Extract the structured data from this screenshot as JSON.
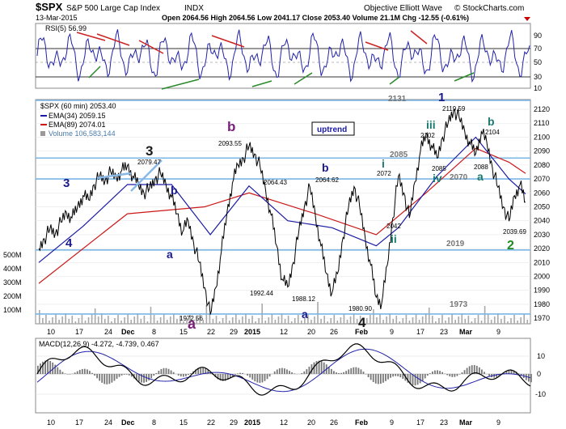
{
  "header": {
    "symbol": "$SPX",
    "name": "S&P 500 Large Cap Index",
    "exchange": "INDX",
    "date": "13-Mar-2015",
    "quote": "Open 2064.56  High 2064.56  Low 2041.17  Close 2053.40  Volume 21.1M  Chg -12.55 (-0.61%)",
    "source": "Objective Elliott Wave",
    "watermark": "© StockCharts.com"
  },
  "rsi": {
    "label": "RSI(5) 56.99",
    "ticks": [
      "90",
      "70",
      "50",
      "30",
      "10"
    ]
  },
  "price_legend": {
    "title": "$SPX (60 min) 2053.40",
    "ema34": "EMA(34) 2059.15",
    "ema89": "EMA(89) 2074.01",
    "volume": "Volume 106,583,144"
  },
  "macd": {
    "label": "MACD(12,26,9) -4.272, -4.739, 0.467",
    "ticks": [
      "10",
      "0",
      "-10"
    ]
  },
  "volume_axis": [
    "500M",
    "400M",
    "300M",
    "200M",
    "100M"
  ],
  "annotations": {
    "uptrend": "uptrend",
    "waves": [
      {
        "t": "3",
        "c": "#1a1a1a"
      },
      {
        "t": "b",
        "c": "#7a1f7a"
      },
      {
        "t": "1",
        "c": "#1a1a8c"
      },
      {
        "t": "3",
        "c": "#1a1a8c"
      },
      {
        "t": "4",
        "c": "#1a1a8c"
      },
      {
        "t": "b",
        "c": "#1a1a8c"
      },
      {
        "t": "a",
        "c": "#1a1a8c"
      },
      {
        "t": "a",
        "c": "#7a1f7a"
      },
      {
        "t": "b",
        "c": "#1a1a8c"
      },
      {
        "t": "a",
        "c": "#1a1a8c"
      },
      {
        "t": "4",
        "c": "#1a1a1a"
      },
      {
        "t": "i",
        "c": "#1b7a6e"
      },
      {
        "t": "ii",
        "c": "#1b7a6e"
      },
      {
        "t": "iii",
        "c": "#1b7a6e"
      },
      {
        "t": "iv",
        "c": "#1b7a6e"
      },
      {
        "t": "b",
        "c": "#1b7a6e"
      },
      {
        "t": "a",
        "c": "#1b7a6e"
      },
      {
        "t": "2",
        "c": "#1f8a1f"
      }
    ],
    "levels": [
      "2131",
      "2085",
      "2070",
      "2019",
      "1973"
    ],
    "price_labels": [
      "2079.47",
      "2093.55",
      "2064.43",
      "2064.62",
      "1992.44",
      "1988.12",
      "1972.56",
      "1980.90",
      "2072",
      "2042",
      "2102",
      "2085",
      "2119.59",
      "2088",
      "2104",
      "2039.69"
    ]
  },
  "chart_data": {
    "type": "line",
    "title": "$SPX S&P 500 Large Cap Index INDX (60 min)",
    "x_ticks": [
      "10",
      "17",
      "24",
      "Dec",
      "8",
      "15",
      "22",
      "29",
      "2015",
      "12",
      "20",
      "26",
      "Feb",
      "9",
      "17",
      "23",
      "Mar",
      "9"
    ],
    "y_ticks": [
      2120,
      2110,
      2100,
      2090,
      2080,
      2070,
      2060,
      2050,
      2040,
      2030,
      2020,
      2010,
      2000,
      1990,
      1980,
      1970
    ],
    "ylim": [
      1966,
      2127
    ],
    "horizontal_levels": [
      2131,
      2085,
      2070,
      2019,
      1973
    ],
    "series": [
      {
        "name": "$SPX (60 min)",
        "color": "#000000",
        "values": [
          [
            0,
            2020
          ],
          [
            1,
            2027
          ],
          [
            2,
            2034
          ],
          [
            3,
            2031
          ],
          [
            4,
            2039
          ],
          [
            5,
            2046
          ],
          [
            6,
            2042
          ],
          [
            7,
            2050
          ],
          [
            8,
            2058
          ],
          [
            9,
            2055
          ],
          [
            10,
            2066
          ],
          [
            11,
            2072
          ],
          [
            12,
            2069
          ],
          [
            13,
            2075
          ],
          [
            14,
            2071
          ],
          [
            15,
            2076
          ],
          [
            16,
            2079.5
          ],
          [
            17,
            2072
          ],
          [
            18,
            2066
          ],
          [
            19,
            2060
          ],
          [
            20,
            2063
          ],
          [
            21,
            2070
          ],
          [
            22,
            2074
          ],
          [
            23,
            2066
          ],
          [
            24,
            2057
          ],
          [
            25,
            2045
          ],
          [
            26,
            2032
          ],
          [
            27,
            2040
          ],
          [
            28,
            2024
          ],
          [
            29,
            2010
          ],
          [
            30,
            1992
          ],
          [
            31,
            1972.6
          ],
          [
            32,
            1992
          ],
          [
            33,
            2018
          ],
          [
            34,
            2045
          ],
          [
            35,
            2067
          ],
          [
            36,
            2080
          ],
          [
            37,
            2085
          ],
          [
            38,
            2093.6
          ],
          [
            39,
            2088
          ],
          [
            40,
            2079
          ],
          [
            41,
            2062
          ],
          [
            42,
            2044
          ],
          [
            43,
            2022
          ],
          [
            44,
            1998
          ],
          [
            45,
            1992.4
          ],
          [
            46,
            2010
          ],
          [
            47,
            2032
          ],
          [
            48,
            2050
          ],
          [
            49,
            2064.4
          ],
          [
            50,
            2044
          ],
          [
            51,
            2022
          ],
          [
            52,
            2002
          ],
          [
            53,
            1988.1
          ],
          [
            54,
            2002
          ],
          [
            55,
            2028
          ],
          [
            56,
            2050
          ],
          [
            57,
            2064.6
          ],
          [
            58,
            2050
          ],
          [
            59,
            2028
          ],
          [
            60,
            2008
          ],
          [
            61,
            1985
          ],
          [
            62,
            1980.9
          ],
          [
            63,
            2008
          ],
          [
            64,
            2042
          ],
          [
            65,
            2072
          ],
          [
            66,
            2060
          ],
          [
            67,
            2042
          ],
          [
            68,
            2068
          ],
          [
            69,
            2090
          ],
          [
            70,
            2102
          ],
          [
            71,
            2094
          ],
          [
            72,
            2085
          ],
          [
            73,
            2100
          ],
          [
            74,
            2110
          ],
          [
            75,
            2119.6
          ],
          [
            76,
            2114
          ],
          [
            77,
            2104
          ],
          [
            78,
            2095
          ],
          [
            79,
            2088
          ],
          [
            80,
            2104
          ],
          [
            81,
            2096
          ],
          [
            82,
            2078
          ],
          [
            83,
            2064
          ],
          [
            84,
            2050
          ],
          [
            85,
            2039.7
          ],
          [
            86,
            2058
          ],
          [
            87,
            2066
          ],
          [
            88,
            2053.4
          ]
        ]
      },
      {
        "name": "EMA(34)",
        "color": "#1a1aa6",
        "values": [
          [
            0,
            2010
          ],
          [
            8,
            2036
          ],
          [
            16,
            2066
          ],
          [
            24,
            2066
          ],
          [
            31,
            2030
          ],
          [
            38,
            2065
          ],
          [
            45,
            2040
          ],
          [
            53,
            2035
          ],
          [
            61,
            2022
          ],
          [
            65,
            2035
          ],
          [
            72,
            2072
          ],
          [
            79,
            2100
          ],
          [
            85,
            2070
          ],
          [
            88,
            2059.2
          ]
        ]
      },
      {
        "name": "EMA(89)",
        "color": "#cc1a1a",
        "values": [
          [
            0,
            1995
          ],
          [
            16,
            2045
          ],
          [
            30,
            2050
          ],
          [
            38,
            2060
          ],
          [
            50,
            2045
          ],
          [
            61,
            2030
          ],
          [
            70,
            2060
          ],
          [
            79,
            2092
          ],
          [
            85,
            2082
          ],
          [
            88,
            2074
          ]
        ]
      }
    ]
  }
}
